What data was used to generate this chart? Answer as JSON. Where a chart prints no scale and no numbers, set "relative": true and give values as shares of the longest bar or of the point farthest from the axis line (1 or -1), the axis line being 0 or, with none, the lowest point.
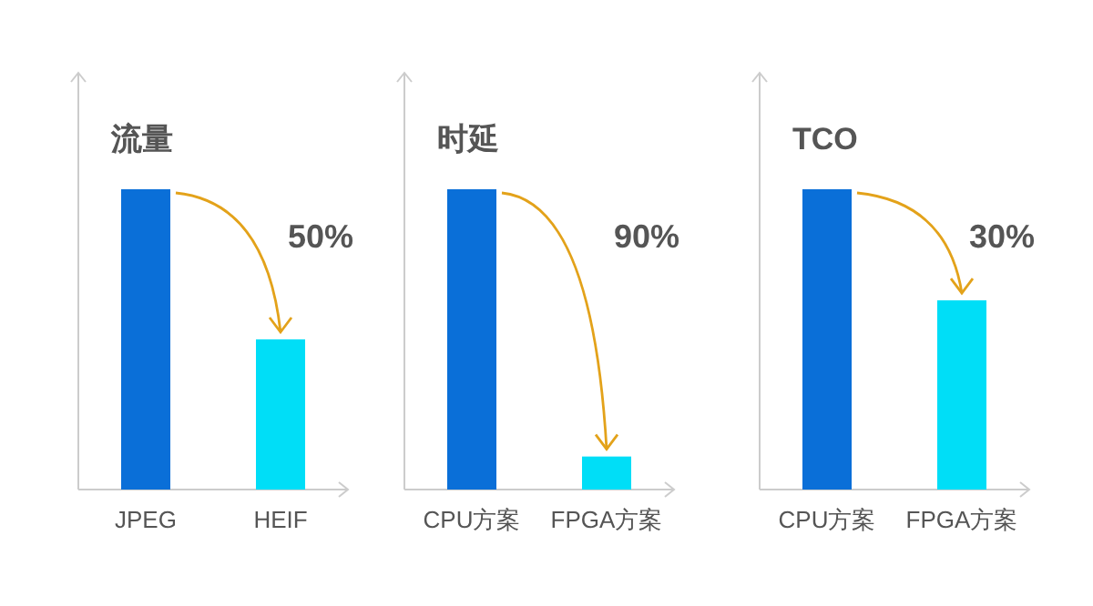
{
  "chart_data": [
    {
      "type": "bar",
      "title": "流量",
      "relative": true,
      "categories": [
        "JPEG",
        "HEIF"
      ],
      "values": [
        1,
        0.5
      ],
      "colors": [
        "#0a6fd8",
        "#00def7"
      ],
      "annotations": [
        "50%"
      ]
    },
    {
      "type": "bar",
      "title": "时延",
      "relative": true,
      "categories": [
        "CPU方案",
        "FPGA方案"
      ],
      "values": [
        1,
        0.11
      ],
      "colors": [
        "#0a6fd8",
        "#00def7"
      ],
      "annotations": [
        "90%"
      ]
    },
    {
      "type": "bar",
      "title": "TCO",
      "relative": true,
      "categories": [
        "CPU方案",
        "FPGA方案"
      ],
      "values": [
        1,
        0.63
      ],
      "colors": [
        "#0a6fd8",
        "#00def7"
      ],
      "annotations": [
        "30%"
      ]
    }
  ]
}
